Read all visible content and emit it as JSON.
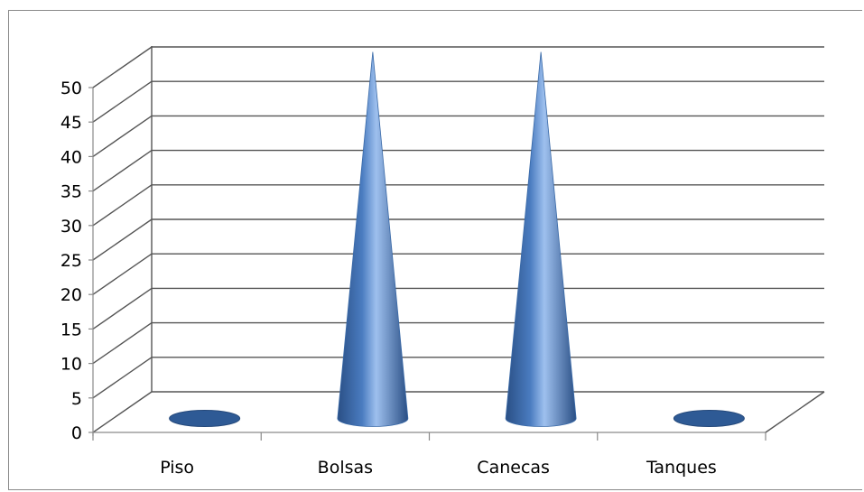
{
  "chart_data": {
    "type": "bar",
    "shape": "cone-3d",
    "categories": [
      "Piso",
      "Bolsas",
      "Canecas",
      "Tanques"
    ],
    "values": [
      0,
      50,
      50,
      0
    ],
    "title": "",
    "xlabel": "",
    "ylabel": "",
    "ylim": [
      0,
      50
    ],
    "yticks": [
      "0",
      "5",
      "10",
      "15",
      "20",
      "25",
      "30",
      "35",
      "40",
      "45",
      "50"
    ],
    "grid": true,
    "legend": "none",
    "colors": {
      "cone_dark": "#2a4f85",
      "cone_mid": "#4a7cc0",
      "cone_light": "#9ec0ee",
      "gridline": "#555555",
      "axis": "#8a8a8a"
    }
  }
}
